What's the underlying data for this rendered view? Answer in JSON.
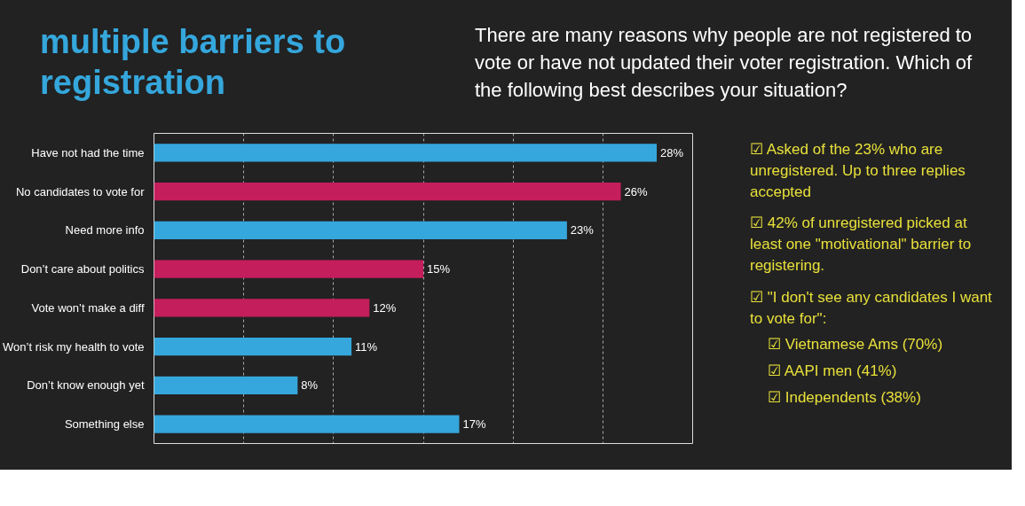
{
  "chart_data": {
    "type": "bar",
    "orientation": "horizontal",
    "title": "multiple barriers to registration",
    "subtitle": "There are many reasons why people are not registered to vote or have not updated their voter registration. Which of the following best describes your situation?",
    "categories": [
      "Have not had the time",
      "No candidates to vote for",
      "Need more info",
      "Don’t care about politics",
      "Vote won’t make a diff",
      "Won’t risk my health to vote",
      "Don’t know enough yet",
      "Something else"
    ],
    "values": [
      28,
      26,
      23,
      15,
      12,
      11,
      8,
      17
    ],
    "colors": [
      "#35a7dc",
      "#c41e5c",
      "#35a7dc",
      "#c41e5c",
      "#c41e5c",
      "#35a7dc",
      "#35a7dc",
      "#35a7dc"
    ],
    "value_labels": [
      "28%",
      "26%",
      "23%",
      "15%",
      "12%",
      "11%",
      "8%",
      "17%"
    ],
    "xlim": [
      0,
      30
    ],
    "xticks": [
      {
        "value": 0,
        "label": null
      },
      {
        "value": 5,
        "label": null
      },
      {
        "value": 10,
        "label": null
      },
      {
        "value": 15,
        "label": null
      },
      {
        "value": 20,
        "label": null
      },
      {
        "value": 25,
        "label": null
      },
      {
        "value": 30,
        "label": null
      }
    ],
    "tick_labels": "y",
    "grid": "x",
    "annotations": [
      "☑ Asked of the 23% who are unregistered. Up to three replies accepted",
      "☑ 42% of unregistered picked at least one \"motivational\" barrier to registering.",
      "☑ \"I don't see any candidates I want to vote for\":",
      "☑ Vietnamese Ams (70%)",
      "☑ AAPI men (41%)",
      "☑ Independents (38%)"
    ]
  }
}
